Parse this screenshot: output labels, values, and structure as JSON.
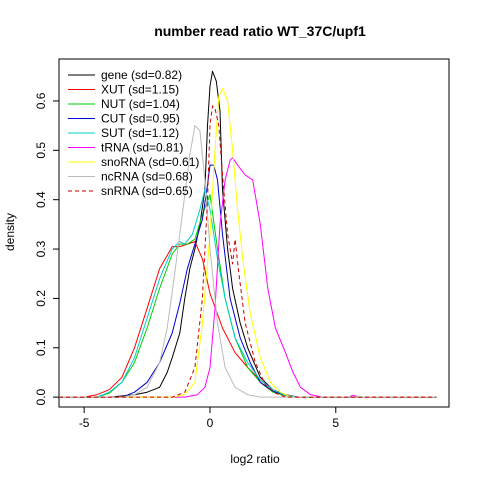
{
  "chart_data": {
    "type": "line",
    "title": "number read ratio WT_37C/upf1",
    "xlabel": "log2 ratio",
    "ylabel": "density",
    "xlim": [
      -6,
      9.5
    ],
    "ylim": [
      -0.02,
      0.685
    ],
    "xticks": [
      -5,
      0,
      5
    ],
    "yticks": [
      0.0,
      0.1,
      0.2,
      0.3,
      0.4,
      0.5,
      0.6
    ],
    "legend_position": "top-left",
    "grid": false,
    "series": [
      {
        "name": "gene (sd=0.82)",
        "color": "#000000",
        "dash": "",
        "points": [
          [
            -6,
            0
          ],
          [
            -4,
            0
          ],
          [
            -3,
            0.005
          ],
          [
            -2.5,
            0.01
          ],
          [
            -2,
            0.02
          ],
          [
            -1.7,
            0.05
          ],
          [
            -1.5,
            0.08
          ],
          [
            -1.2,
            0.13
          ],
          [
            -1,
            0.2
          ],
          [
            -0.8,
            0.26
          ],
          [
            -0.6,
            0.3
          ],
          [
            -0.4,
            0.35
          ],
          [
            -0.2,
            0.42
          ],
          [
            -0.1,
            0.55
          ],
          [
            0,
            0.63
          ],
          [
            0.1,
            0.66
          ],
          [
            0.25,
            0.64
          ],
          [
            0.4,
            0.58
          ],
          [
            0.5,
            0.42
          ],
          [
            0.7,
            0.3
          ],
          [
            0.9,
            0.22
          ],
          [
            1.2,
            0.15
          ],
          [
            1.5,
            0.1
          ],
          [
            2,
            0.04
          ],
          [
            2.5,
            0.015
          ],
          [
            3,
            0.005
          ],
          [
            3.5,
            0
          ],
          [
            9,
            0
          ]
        ]
      },
      {
        "name": "XUT (sd=1.15)",
        "color": "#ff0000",
        "dash": "",
        "points": [
          [
            -6,
            0
          ],
          [
            -5,
            0
          ],
          [
            -4.5,
            0.005
          ],
          [
            -4,
            0.015
          ],
          [
            -3.5,
            0.04
          ],
          [
            -3,
            0.1
          ],
          [
            -2.5,
            0.18
          ],
          [
            -2,
            0.26
          ],
          [
            -1.5,
            0.305
          ],
          [
            -1.2,
            0.305
          ],
          [
            -0.9,
            0.31
          ],
          [
            -0.6,
            0.315
          ],
          [
            -0.3,
            0.28
          ],
          [
            0,
            0.21
          ],
          [
            0.5,
            0.14
          ],
          [
            1,
            0.09
          ],
          [
            1.5,
            0.06
          ],
          [
            2,
            0.035
          ],
          [
            2.5,
            0.015
          ],
          [
            3,
            0.005
          ],
          [
            3.5,
            0
          ],
          [
            9,
            0
          ]
        ]
      },
      {
        "name": "NUT (sd=1.04)",
        "color": "#00cc00",
        "dash": "",
        "points": [
          [
            -6,
            0
          ],
          [
            -4.5,
            0
          ],
          [
            -4,
            0.008
          ],
          [
            -3.5,
            0.03
          ],
          [
            -3,
            0.07
          ],
          [
            -2.5,
            0.14
          ],
          [
            -2,
            0.22
          ],
          [
            -1.5,
            0.29
          ],
          [
            -1.2,
            0.31
          ],
          [
            -0.9,
            0.31
          ],
          [
            -0.6,
            0.32
          ],
          [
            -0.3,
            0.37
          ],
          [
            0,
            0.41
          ],
          [
            0.3,
            0.3
          ],
          [
            0.6,
            0.2
          ],
          [
            1,
            0.12
          ],
          [
            1.5,
            0.06
          ],
          [
            2,
            0.03
          ],
          [
            2.5,
            0.01
          ],
          [
            3,
            0.003
          ],
          [
            3.5,
            0
          ],
          [
            9,
            0
          ]
        ]
      },
      {
        "name": "CUT (sd=0.95)",
        "color": "#0000cc",
        "dash": "",
        "points": [
          [
            -6,
            0
          ],
          [
            -3.5,
            0
          ],
          [
            -3,
            0.01
          ],
          [
            -2.5,
            0.03
          ],
          [
            -2,
            0.07
          ],
          [
            -1.5,
            0.13
          ],
          [
            -1.2,
            0.19
          ],
          [
            -0.9,
            0.26
          ],
          [
            -0.6,
            0.31
          ],
          [
            -0.3,
            0.36
          ],
          [
            -0.1,
            0.43
          ],
          [
            0,
            0.47
          ],
          [
            0.15,
            0.47
          ],
          [
            0.3,
            0.44
          ],
          [
            0.5,
            0.33
          ],
          [
            0.8,
            0.2
          ],
          [
            1.2,
            0.12
          ],
          [
            1.6,
            0.07
          ],
          [
            2,
            0.03
          ],
          [
            2.5,
            0.012
          ],
          [
            3,
            0.004
          ],
          [
            3.5,
            0
          ],
          [
            9,
            0
          ]
        ]
      },
      {
        "name": "SUT (sd=1.12)",
        "color": "#00cccc",
        "dash": "",
        "points": [
          [
            -6,
            0
          ],
          [
            -4.5,
            0
          ],
          [
            -4,
            0.01
          ],
          [
            -3.5,
            0.03
          ],
          [
            -3,
            0.08
          ],
          [
            -2.5,
            0.16
          ],
          [
            -2,
            0.24
          ],
          [
            -1.5,
            0.3
          ],
          [
            -1.2,
            0.315
          ],
          [
            -1,
            0.31
          ],
          [
            -0.7,
            0.33
          ],
          [
            -0.4,
            0.38
          ],
          [
            -0.2,
            0.42
          ],
          [
            0,
            0.38
          ],
          [
            0.3,
            0.28
          ],
          [
            0.6,
            0.2
          ],
          [
            1,
            0.12
          ],
          [
            1.5,
            0.07
          ],
          [
            2,
            0.035
          ],
          [
            2.5,
            0.015
          ],
          [
            3,
            0.004
          ],
          [
            3.5,
            0
          ],
          [
            9,
            0
          ]
        ]
      },
      {
        "name": "tRNA (sd=0.81)",
        "color": "#ff00ff",
        "dash": "",
        "points": [
          [
            -6,
            0
          ],
          [
            -1,
            0
          ],
          [
            -0.5,
            0.005
          ],
          [
            -0.2,
            0.02
          ],
          [
            0,
            0.06
          ],
          [
            0.2,
            0.18
          ],
          [
            0.4,
            0.35
          ],
          [
            0.6,
            0.44
          ],
          [
            0.8,
            0.48
          ],
          [
            0.9,
            0.485
          ],
          [
            1.1,
            0.47
          ],
          [
            1.4,
            0.45
          ],
          [
            1.7,
            0.44
          ],
          [
            2,
            0.35
          ],
          [
            2.3,
            0.22
          ],
          [
            2.6,
            0.14
          ],
          [
            3,
            0.09
          ],
          [
            3.3,
            0.05
          ],
          [
            3.6,
            0.02
          ],
          [
            4,
            0.005
          ],
          [
            4.5,
            0
          ],
          [
            5.5,
            0
          ],
          [
            5.7,
            0.004
          ],
          [
            5.9,
            0
          ],
          [
            9,
            0
          ]
        ]
      },
      {
        "name": "snoRNA (sd=0.61)",
        "color": "#ffff00",
        "dash": "",
        "points": [
          [
            -6,
            0
          ],
          [
            -1.5,
            0
          ],
          [
            -1,
            0.005
          ],
          [
            -0.6,
            0.03
          ],
          [
            -0.3,
            0.15
          ],
          [
            0,
            0.33
          ],
          [
            0.2,
            0.5
          ],
          [
            0.35,
            0.61
          ],
          [
            0.5,
            0.625
          ],
          [
            0.7,
            0.6
          ],
          [
            0.9,
            0.5
          ],
          [
            1.1,
            0.38
          ],
          [
            1.3,
            0.28
          ],
          [
            1.6,
            0.17
          ],
          [
            2,
            0.08
          ],
          [
            2.4,
            0.03
          ],
          [
            2.8,
            0.01
          ],
          [
            3.2,
            0
          ],
          [
            9,
            0
          ]
        ]
      },
      {
        "name": "ncRNA (sd=0.68)",
        "color": "#bbbbbb",
        "dash": "",
        "points": [
          [
            -6,
            0
          ],
          [
            -3.5,
            0
          ],
          [
            -3,
            0.005
          ],
          [
            -2.5,
            0.02
          ],
          [
            -2,
            0.07
          ],
          [
            -1.7,
            0.14
          ],
          [
            -1.4,
            0.25
          ],
          [
            -1.1,
            0.37
          ],
          [
            -0.8,
            0.49
          ],
          [
            -0.6,
            0.55
          ],
          [
            -0.4,
            0.54
          ],
          [
            -0.2,
            0.44
          ],
          [
            0,
            0.3
          ],
          [
            0.3,
            0.15
          ],
          [
            0.6,
            0.06
          ],
          [
            1,
            0.02
          ],
          [
            1.5,
            0.005
          ],
          [
            2,
            0
          ],
          [
            9,
            0
          ]
        ]
      },
      {
        "name": "snRNA (sd=0.65)",
        "color": "#cc0000",
        "dash": "4,3",
        "points": [
          [
            -6,
            0
          ],
          [
            -1.5,
            0
          ],
          [
            -1,
            0.01
          ],
          [
            -0.6,
            0.06
          ],
          [
            -0.3,
            0.2
          ],
          [
            -0.1,
            0.4
          ],
          [
            0,
            0.55
          ],
          [
            0.1,
            0.59
          ],
          [
            0.2,
            0.585
          ],
          [
            0.35,
            0.55
          ],
          [
            0.5,
            0.45
          ],
          [
            0.7,
            0.33
          ],
          [
            0.9,
            0.27
          ],
          [
            1,
            0.32
          ],
          [
            1.15,
            0.25
          ],
          [
            1.4,
            0.15
          ],
          [
            1.8,
            0.07
          ],
          [
            2.2,
            0.025
          ],
          [
            2.6,
            0.008
          ],
          [
            3,
            0
          ],
          [
            9,
            0
          ]
        ]
      }
    ]
  }
}
